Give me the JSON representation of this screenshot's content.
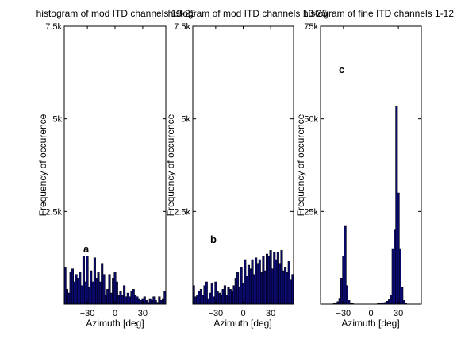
{
  "colors": {
    "bar": "#0a0a6e",
    "bar_edge": "#000000",
    "axis": "#000000",
    "background": "#ffffff"
  },
  "chart_data": [
    {
      "type": "bar",
      "title": "histogram of mod ITD channels 13-25",
      "panel_label": "a",
      "xlabel": "Azimuth [deg]",
      "ylabel": "Frequency of occurence",
      "xlim": [
        -55,
        55
      ],
      "ylim": [
        0,
        7500
      ],
      "xticks": [
        {
          "value": -30,
          "label": "−30"
        },
        {
          "value": 0,
          "label": "0"
        },
        {
          "value": 30,
          "label": "30"
        }
      ],
      "yticks": [
        {
          "value": 2500,
          "label": "2.5k"
        },
        {
          "value": 5000,
          "label": "5k"
        },
        {
          "value": 7500,
          "label": "7.5k"
        }
      ],
      "bin_width": 2.2,
      "x": [
        -54,
        -52,
        -50,
        -48,
        -46,
        -44,
        -42,
        -40,
        -38,
        -36,
        -34,
        -32,
        -30,
        -28,
        -26,
        -24,
        -22,
        -20,
        -18,
        -16,
        -14,
        -12,
        -10,
        -8,
        -6,
        -4,
        -2,
        0,
        2,
        4,
        6,
        8,
        10,
        12,
        14,
        16,
        18,
        20,
        22,
        24,
        26,
        28,
        30,
        32,
        34,
        36,
        38,
        40,
        42,
        44,
        46,
        48,
        50,
        52,
        54
      ],
      "values": [
        1000,
        400,
        300,
        850,
        950,
        600,
        800,
        700,
        850,
        500,
        1300,
        600,
        1300,
        450,
        900,
        600,
        1250,
        700,
        850,
        600,
        1100,
        800,
        250,
        400,
        800,
        300,
        700,
        850,
        600,
        250,
        350,
        250,
        500,
        200,
        300,
        200,
        350,
        400,
        250,
        200,
        150,
        100,
        150,
        200,
        100,
        50,
        150,
        100,
        200,
        100,
        50,
        200,
        100,
        150,
        350
      ]
    },
    {
      "type": "bar",
      "title": "histogram of mod ITD channels 13-25",
      "panel_label": "b",
      "xlabel": "Azimuth [deg]",
      "ylabel": "Frequency of occurence",
      "xlim": [
        -55,
        55
      ],
      "ylim": [
        0,
        7500
      ],
      "xticks": [
        {
          "value": -30,
          "label": "−30"
        },
        {
          "value": 0,
          "label": "0"
        },
        {
          "value": 30,
          "label": "30"
        }
      ],
      "yticks": [
        {
          "value": 2500,
          "label": "2.5k"
        },
        {
          "value": 5000,
          "label": "5k"
        },
        {
          "value": 7500,
          "label": "7.5k"
        }
      ],
      "bin_width": 2.2,
      "x": [
        -54,
        -52,
        -50,
        -48,
        -46,
        -44,
        -42,
        -40,
        -38,
        -36,
        -34,
        -32,
        -30,
        -28,
        -26,
        -24,
        -22,
        -20,
        -18,
        -16,
        -14,
        -12,
        -10,
        -8,
        -6,
        -4,
        -2,
        0,
        2,
        4,
        6,
        8,
        10,
        12,
        14,
        16,
        18,
        20,
        22,
        24,
        26,
        28,
        30,
        32,
        34,
        36,
        38,
        40,
        42,
        44,
        46,
        48,
        50,
        52,
        54
      ],
      "values": [
        500,
        200,
        250,
        350,
        400,
        250,
        500,
        600,
        150,
        300,
        550,
        200,
        600,
        350,
        300,
        250,
        400,
        500,
        250,
        450,
        400,
        350,
        500,
        700,
        850,
        450,
        1000,
        550,
        1200,
        750,
        1050,
        950,
        1200,
        800,
        1250,
        1100,
        1200,
        850,
        1300,
        900,
        1350,
        1300,
        1450,
        950,
        1400,
        1200,
        1400,
        1100,
        1450,
        900,
        1000,
        850,
        1150,
        650,
        800
      ]
    },
    {
      "type": "bar",
      "title": "histogram of fine ITD channels 1-12",
      "panel_label": "c",
      "xlabel": "Azimuth [deg]",
      "ylabel": "Frequency of occurence",
      "xlim": [
        -55,
        55
      ],
      "ylim": [
        0,
        75000
      ],
      "xticks": [
        {
          "value": -30,
          "label": "−30"
        },
        {
          "value": 0,
          "label": "0"
        },
        {
          "value": 30,
          "label": "30"
        }
      ],
      "yticks": [
        {
          "value": 25000,
          "label": "25k"
        },
        {
          "value": 50000,
          "label": "50k"
        },
        {
          "value": 75000,
          "label": "75k"
        }
      ],
      "bin_width": 2.2,
      "x": [
        -40,
        -38,
        -36,
        -34,
        -32,
        -30,
        -28,
        -26,
        -24,
        -22,
        -20,
        8,
        10,
        12,
        14,
        16,
        18,
        20,
        22,
        24,
        26,
        28,
        30,
        32,
        34,
        36,
        38
      ],
      "values": [
        200,
        400,
        700,
        1600,
        7000,
        13000,
        21000,
        5000,
        1000,
        400,
        200,
        150,
        250,
        300,
        400,
        500,
        800,
        1200,
        2500,
        15000,
        20000,
        53500,
        30000,
        15000,
        4500,
        1000,
        300
      ]
    }
  ]
}
